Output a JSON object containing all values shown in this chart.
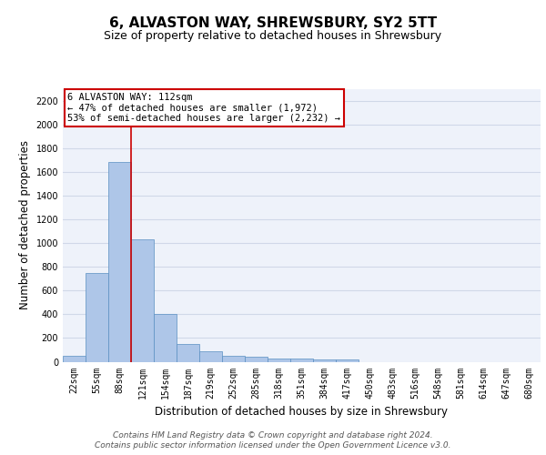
{
  "title": "6, ALVASTON WAY, SHREWSBURY, SY2 5TT",
  "subtitle": "Size of property relative to detached houses in Shrewsbury",
  "xlabel": "Distribution of detached houses by size in Shrewsbury",
  "ylabel": "Number of detached properties",
  "footer_line1": "Contains HM Land Registry data © Crown copyright and database right 2024.",
  "footer_line2": "Contains public sector information licensed under the Open Government Licence v3.0.",
  "bin_labels": [
    "22sqm",
    "55sqm",
    "88sqm",
    "121sqm",
    "154sqm",
    "187sqm",
    "219sqm",
    "252sqm",
    "285sqm",
    "318sqm",
    "351sqm",
    "384sqm",
    "417sqm",
    "450sqm",
    "483sqm",
    "516sqm",
    "548sqm",
    "581sqm",
    "614sqm",
    "647sqm",
    "680sqm"
  ],
  "bin_values": [
    50,
    750,
    1680,
    1030,
    400,
    150,
    85,
    50,
    40,
    30,
    25,
    20,
    20,
    0,
    0,
    0,
    0,
    0,
    0,
    0,
    0
  ],
  "bar_color": "#aec6e8",
  "bar_edge_color": "#5a8fc2",
  "grid_color": "#d0d8e8",
  "red_line_x": 2.5,
  "annotation_text": "6 ALVASTON WAY: 112sqm\n← 47% of detached houses are smaller (1,972)\n53% of semi-detached houses are larger (2,232) →",
  "annotation_box_color": "#ffffff",
  "annotation_box_edge_color": "#cc0000",
  "ylim": [
    0,
    2300
  ],
  "yticks": [
    0,
    200,
    400,
    600,
    800,
    1000,
    1200,
    1400,
    1600,
    1800,
    2000,
    2200
  ],
  "background_color": "#eef2fa",
  "title_fontsize": 11,
  "subtitle_fontsize": 9,
  "axis_label_fontsize": 8.5,
  "tick_fontsize": 7,
  "footer_fontsize": 6.5,
  "ann_fontsize": 7.5
}
